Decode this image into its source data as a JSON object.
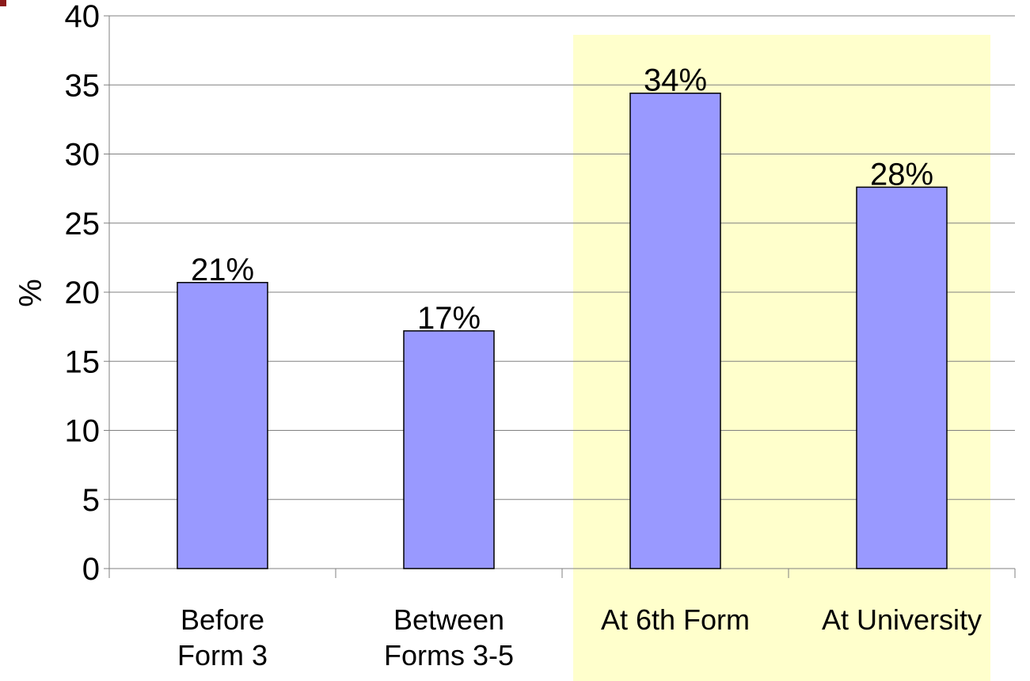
{
  "chart_data": {
    "type": "bar",
    "ylabel": "%",
    "categories": [
      "Before\nForm 3",
      "Between\nForms 3-5",
      "At 6th Form",
      "At University"
    ],
    "values": [
      20.7,
      17.2,
      34.4,
      27.6
    ],
    "value_labels": [
      "21%",
      "17%",
      "34%",
      "28%"
    ],
    "color": "#9999ff",
    "ylim": [
      0,
      40
    ],
    "yticks": [
      0,
      5,
      10,
      15,
      20,
      25,
      30,
      35,
      40
    ],
    "grid": true
  }
}
